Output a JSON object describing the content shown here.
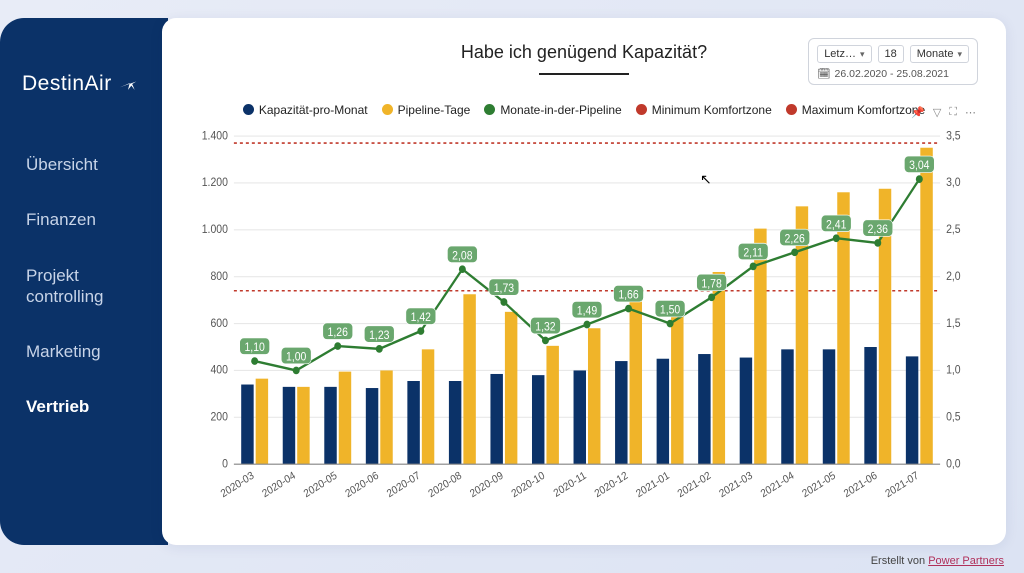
{
  "brand": "DestinAir",
  "nav": [
    {
      "label": "Übersicht",
      "active": false
    },
    {
      "label": "Finanzen",
      "active": false
    },
    {
      "label": "Projekt\ncontrolling",
      "active": false
    },
    {
      "label": "Marketing",
      "active": false
    },
    {
      "label": "Vertrieb",
      "active": true
    }
  ],
  "title": "Habe ich genügend Kapazität?",
  "filter": {
    "preset": "Letz…",
    "count": "18",
    "unit": "Monate",
    "range": "26.02.2020 - 25.08.2021"
  },
  "legend": [
    {
      "label": "Kapazität-pro-Monat",
      "color": "#0b3268",
      "shape": "circle"
    },
    {
      "label": "Pipeline-Tage",
      "color": "#f0b429",
      "shape": "circle"
    },
    {
      "label": "Monate-in-der-Pipeline",
      "color": "#2e7d32",
      "shape": "circle"
    },
    {
      "label": "Minimum Komfortzone",
      "color": "#c0392b",
      "shape": "circle"
    },
    {
      "label": "Maximum Komfortzone",
      "color": "#c0392b",
      "shape": "circle"
    }
  ],
  "chart": {
    "type": "bar+line",
    "categories": [
      "2020-03",
      "2020-04",
      "2020-05",
      "2020-06",
      "2020-07",
      "2020-08",
      "2020-09",
      "2020-10",
      "2020-11",
      "2020-12",
      "2021-01",
      "2021-02",
      "2021-03",
      "2021-04",
      "2021-05",
      "2021-06",
      "2021-07"
    ],
    "bars_capacity": [
      340,
      330,
      330,
      325,
      355,
      355,
      385,
      380,
      400,
      440,
      450,
      470,
      455,
      490,
      490,
      500,
      460
    ],
    "bars_pipeline": [
      365,
      330,
      395,
      400,
      490,
      725,
      650,
      505,
      580,
      720,
      660,
      820,
      1005,
      1100,
      1160,
      1175,
      1350
    ],
    "line_months": [
      1.1,
      1.0,
      1.26,
      1.23,
      1.42,
      2.08,
      1.73,
      1.32,
      1.49,
      1.66,
      1.5,
      1.78,
      2.11,
      2.26,
      2.41,
      2.36,
      3.04
    ],
    "y_left": {
      "min": 0,
      "max": 1400,
      "step": 200
    },
    "y_right": {
      "min": 0,
      "max": 3.5,
      "step": 0.5
    },
    "min_comfort": 740,
    "max_comfort": 1370,
    "colors": {
      "capacity": "#0b3268",
      "pipeline": "#f0b429",
      "line": "#2e7d32",
      "comfort": "#c0392b",
      "grid": "#e8e8e8",
      "bg": "#ffffff"
    },
    "datalabel_bg": "#6aa76e"
  },
  "footer": {
    "prefix": "Erstellt von ",
    "link": "Power Partners"
  }
}
